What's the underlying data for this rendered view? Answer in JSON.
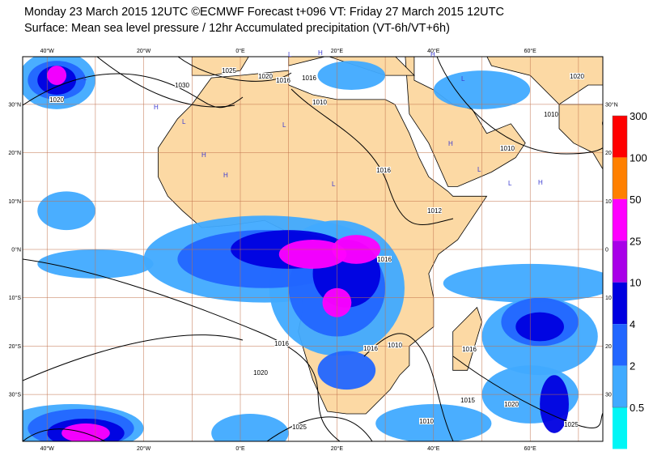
{
  "header": {
    "title": "Monday 23 March 2015 12UTC ©ECMWF Forecast t+096 VT: Friday 27 March 2015 12UTC",
    "subtitle": "Surface: Mean sea level pressure / 12hr Accumulated precipitation (VT-6h/VT+6h)"
  },
  "map": {
    "lon_labels_top": [
      "40°W",
      "20°W",
      "0°E",
      "20°E",
      "40°E",
      "60°E"
    ],
    "lon_labels_bottom": [
      "40°W",
      "20°W",
      "0°E",
      "20°E",
      "40°E",
      "60°E"
    ],
    "lat_labels_left": [
      "30°N",
      "20°N",
      "10°N",
      "0°N",
      "10°S",
      "20°S",
      "30°S"
    ],
    "lat_labels_right": [
      "30°N",
      "20",
      "10",
      "0",
      "10",
      "20",
      "30"
    ],
    "contour_labels": [
      "1020",
      "1030",
      "1025",
      "1020",
      "1016",
      "1016",
      "1010",
      "1016",
      "1012",
      "1010",
      "1010",
      "1020",
      "1016",
      "1016",
      "1020",
      "1025",
      "1016",
      "1010",
      "1016",
      "1015",
      "1010",
      "1020",
      "1025"
    ],
    "pressure_centers": [
      "L",
      "H",
      "H",
      "L",
      "H",
      "L",
      "L",
      "H",
      "L",
      "H",
      "H",
      "L",
      "L",
      "H",
      "L"
    ]
  },
  "legend": {
    "levels": [
      "300",
      "100",
      "50",
      "25",
      "10",
      "4",
      "2",
      "0.5"
    ],
    "colors": [
      "#ff0000",
      "#ff8000",
      "#ff00ff",
      "#a800e8",
      "#0000e0",
      "#2266ff",
      "#40aaff",
      "#00f6f6"
    ]
  }
}
